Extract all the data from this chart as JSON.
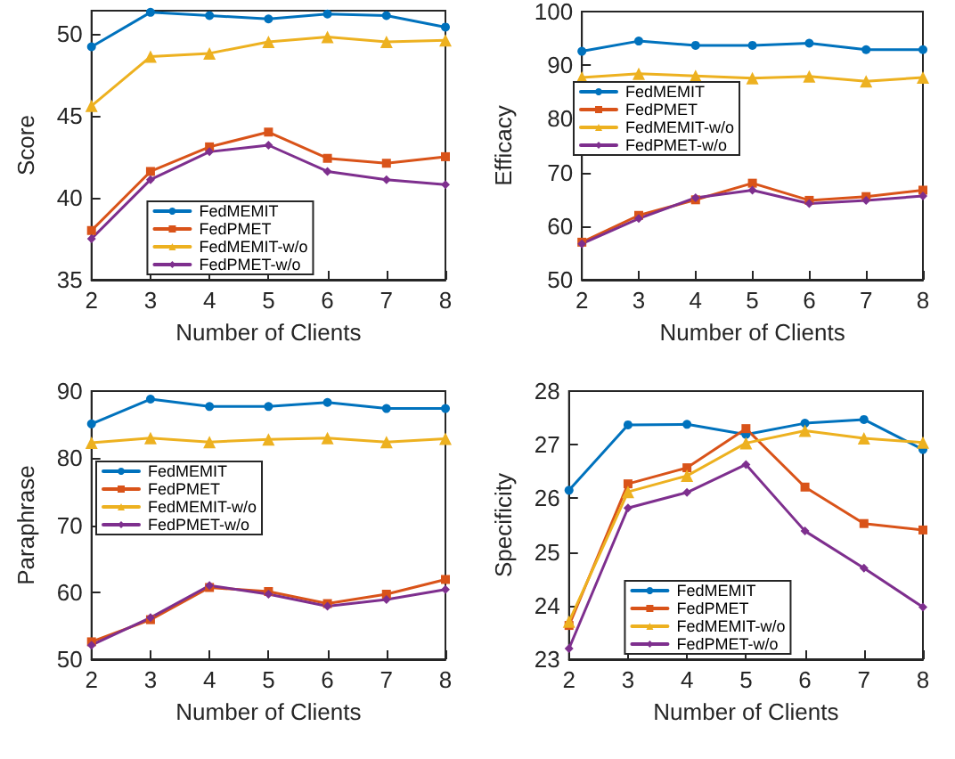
{
  "chart_data": [
    {
      "type": "line",
      "xlabel": "Number of Clients",
      "ylabel": "Score",
      "x": [
        2,
        3,
        4,
        5,
        6,
        7,
        8
      ],
      "xlim": [
        2,
        8
      ],
      "xticks": [
        2,
        3,
        4,
        5,
        6,
        7,
        8
      ],
      "ylim": [
        35,
        51.4
      ],
      "yticks": [
        35,
        40,
        45,
        50
      ],
      "grid": false,
      "legend": "bottom",
      "line_style": "solid",
      "series": [
        {
          "name": "FedMEMIT",
          "color": "#0072bd",
          "marker": "circle",
          "values": [
            49.2,
            51.3,
            51.1,
            50.9,
            51.2,
            51.1,
            50.4
          ]
        },
        {
          "name": "FedPMET",
          "color": "#d95319",
          "marker": "square",
          "values": [
            38.0,
            41.6,
            43.1,
            44.0,
            42.4,
            42.1,
            42.5
          ]
        },
        {
          "name": "FedMEMIT-w/o",
          "color": "#edb120",
          "marker": "triangle",
          "values": [
            45.6,
            48.6,
            48.8,
            49.5,
            49.8,
            49.5,
            49.6
          ]
        },
        {
          "name": "FedPMET-w/o",
          "color": "#7e2f8e",
          "marker": "diamond",
          "values": [
            37.5,
            41.1,
            42.8,
            43.2,
            41.6,
            41.1,
            40.8
          ]
        }
      ]
    },
    {
      "type": "line",
      "xlabel": "Number of Clients",
      "ylabel": "Efficacy",
      "x": [
        2,
        3,
        4,
        5,
        6,
        7,
        8
      ],
      "xlim": [
        2,
        8
      ],
      "xticks": [
        2,
        3,
        4,
        5,
        6,
        7,
        8
      ],
      "ylim": [
        50,
        100
      ],
      "yticks": [
        50,
        60,
        70,
        80,
        90,
        100
      ],
      "grid": false,
      "legend": "left",
      "line_style": "solid",
      "series": [
        {
          "name": "FedMEMIT",
          "color": "#0072bd",
          "marker": "circle",
          "values": [
            92.6,
            94.5,
            93.7,
            93.7,
            94.1,
            92.9,
            92.9
          ]
        },
        {
          "name": "FedPMET",
          "color": "#d95319",
          "marker": "square",
          "values": [
            57.0,
            62.0,
            64.9,
            68.0,
            64.8,
            65.5,
            66.7
          ]
        },
        {
          "name": "FedMEMIT-w/o",
          "color": "#edb120",
          "marker": "triangle",
          "values": [
            87.7,
            88.4,
            88.0,
            87.6,
            87.9,
            87.0,
            87.7
          ]
        },
        {
          "name": "FedPMET-w/o",
          "color": "#7e2f8e",
          "marker": "diamond",
          "values": [
            56.7,
            61.4,
            65.3,
            66.7,
            64.2,
            64.8,
            65.6
          ]
        }
      ]
    },
    {
      "type": "line",
      "xlabel": "Number of Clients",
      "ylabel": "Paraphrase",
      "x": [
        2,
        3,
        4,
        5,
        6,
        7,
        8
      ],
      "xlim": [
        2,
        8
      ],
      "xticks": [
        2,
        3,
        4,
        5,
        6,
        7,
        8
      ],
      "ylim": [
        50,
        90
      ],
      "yticks": [
        50,
        60,
        70,
        80,
        90
      ],
      "grid": false,
      "legend": "left",
      "line_style": "solid",
      "series": [
        {
          "name": "FedMEMIT",
          "color": "#0072bd",
          "marker": "circle",
          "values": [
            85.1,
            88.8,
            87.7,
            87.7,
            88.3,
            87.4,
            87.4
          ]
        },
        {
          "name": "FedPMET",
          "color": "#d95319",
          "marker": "square",
          "values": [
            52.6,
            55.9,
            60.7,
            60.1,
            58.3,
            59.7,
            61.9
          ]
        },
        {
          "name": "FedMEMIT-w/o",
          "color": "#edb120",
          "marker": "triangle",
          "values": [
            82.3,
            83.0,
            82.4,
            82.8,
            83.0,
            82.4,
            82.9
          ]
        },
        {
          "name": "FedPMET-w/o",
          "color": "#7e2f8e",
          "marker": "diamond",
          "values": [
            52.1,
            56.2,
            61.0,
            59.7,
            57.9,
            58.9,
            60.4
          ]
        }
      ]
    },
    {
      "type": "line",
      "xlabel": "Number of Clients",
      "ylabel": "Specificity",
      "x": [
        2,
        3,
        4,
        5,
        6,
        7,
        8
      ],
      "xlim": [
        2,
        8
      ],
      "xticks": [
        2,
        3,
        4,
        5,
        6,
        7,
        8
      ],
      "ylim": [
        23,
        28
      ],
      "yticks": [
        23,
        24,
        25,
        26,
        27,
        28
      ],
      "grid": false,
      "legend": "bottom",
      "line_style": "solid",
      "series": [
        {
          "name": "FedMEMIT",
          "color": "#0072bd",
          "marker": "circle",
          "values": [
            26.15,
            27.37,
            27.38,
            27.19,
            27.4,
            27.47,
            26.91
          ]
        },
        {
          "name": "FedPMET",
          "color": "#d95319",
          "marker": "square",
          "values": [
            23.63,
            26.27,
            26.57,
            27.3,
            26.21,
            25.53,
            25.41
          ]
        },
        {
          "name": "FedMEMIT-w/o",
          "color": "#edb120",
          "marker": "triangle",
          "values": [
            23.7,
            26.12,
            26.42,
            27.03,
            27.26,
            27.12,
            27.04
          ]
        },
        {
          "name": "FedPMET-w/o",
          "color": "#7e2f8e",
          "marker": "diamond",
          "values": [
            23.2,
            25.82,
            26.11,
            26.63,
            25.39,
            24.7,
            23.97
          ]
        }
      ]
    }
  ]
}
